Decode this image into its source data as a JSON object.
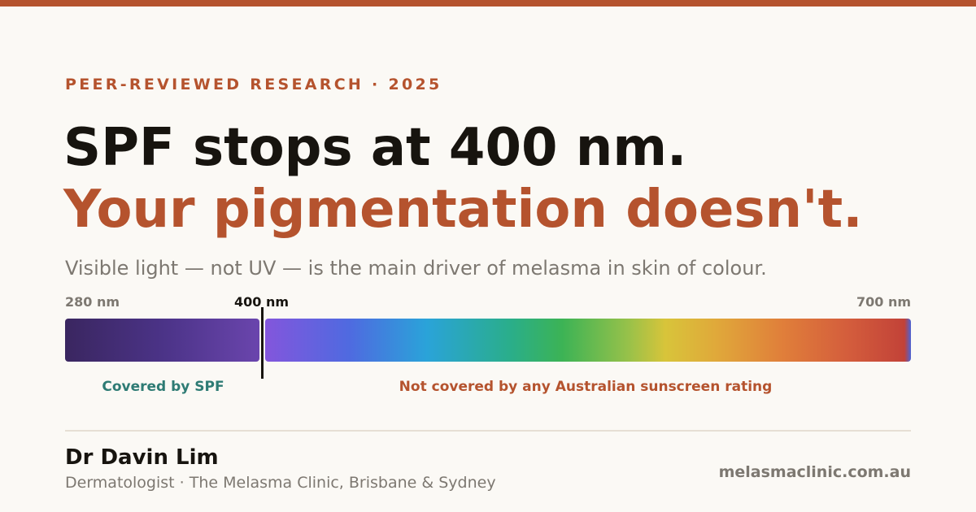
{
  "eyebrow": "PEER-REVIEWED RESEARCH · 2025",
  "headline": {
    "line1": "SPF stops at 400 nm.",
    "line2": "Your pigmentation doesn't."
  },
  "subtitle": "Visible light — not UV — is the main driver of melasma in skin of colour.",
  "spectrum": {
    "labels": {
      "start": "280 nm",
      "marker": "400 nm",
      "end": "700 nm"
    },
    "captions": {
      "covered": "Covered by SPF",
      "not_covered": "Not covered by any Australian sunscreen rating"
    }
  },
  "footer": {
    "name": "Dr Davin Lim",
    "role": "Dermatologist · The Melasma Clinic, Brisbane & Sydney",
    "url": "melasmaclinic.com.au"
  }
}
